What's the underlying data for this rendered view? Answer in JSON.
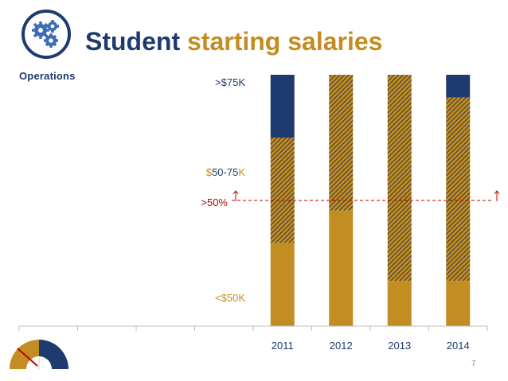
{
  "slide": {
    "title_part1": "Student",
    "title_part2": "starting salaries",
    "logo_label": "Operations",
    "page_number": "7"
  },
  "colors": {
    "navy": "#1f3a6e",
    "gold": "#c28d22",
    "red": "#c00000",
    "hatch_stroke": "#3b3b3b"
  },
  "chart_data": {
    "type": "bar",
    "stacked": true,
    "categories": [
      "",
      "",
      "",
      "",
      "2011",
      "2012",
      "2013",
      "2014"
    ],
    "ylim": [
      0,
      100
    ],
    "series": [
      {
        "name": "<$50K",
        "color": "#c28d22",
        "pattern": "solid",
        "values": [
          0,
          0,
          0,
          0,
          33,
          46,
          18,
          18
        ]
      },
      {
        "name": "$50-75K",
        "color": "#c28d22",
        "pattern": "hatch",
        "values": [
          0,
          0,
          0,
          0,
          42,
          54,
          82,
          73
        ]
      },
      {
        "name": ">$75K",
        "color": "#1f3a6e",
        "pattern": "solid",
        "values": [
          0,
          0,
          0,
          0,
          25,
          0,
          0,
          9
        ]
      }
    ],
    "reference_line": {
      "label": ">50%",
      "value": 50
    },
    "segment_labels": {
      "low": "<$50K",
      "mid_prefix": "$",
      "mid_core": "50-75",
      "mid_suffix": "K",
      "high": ">$75K"
    }
  }
}
